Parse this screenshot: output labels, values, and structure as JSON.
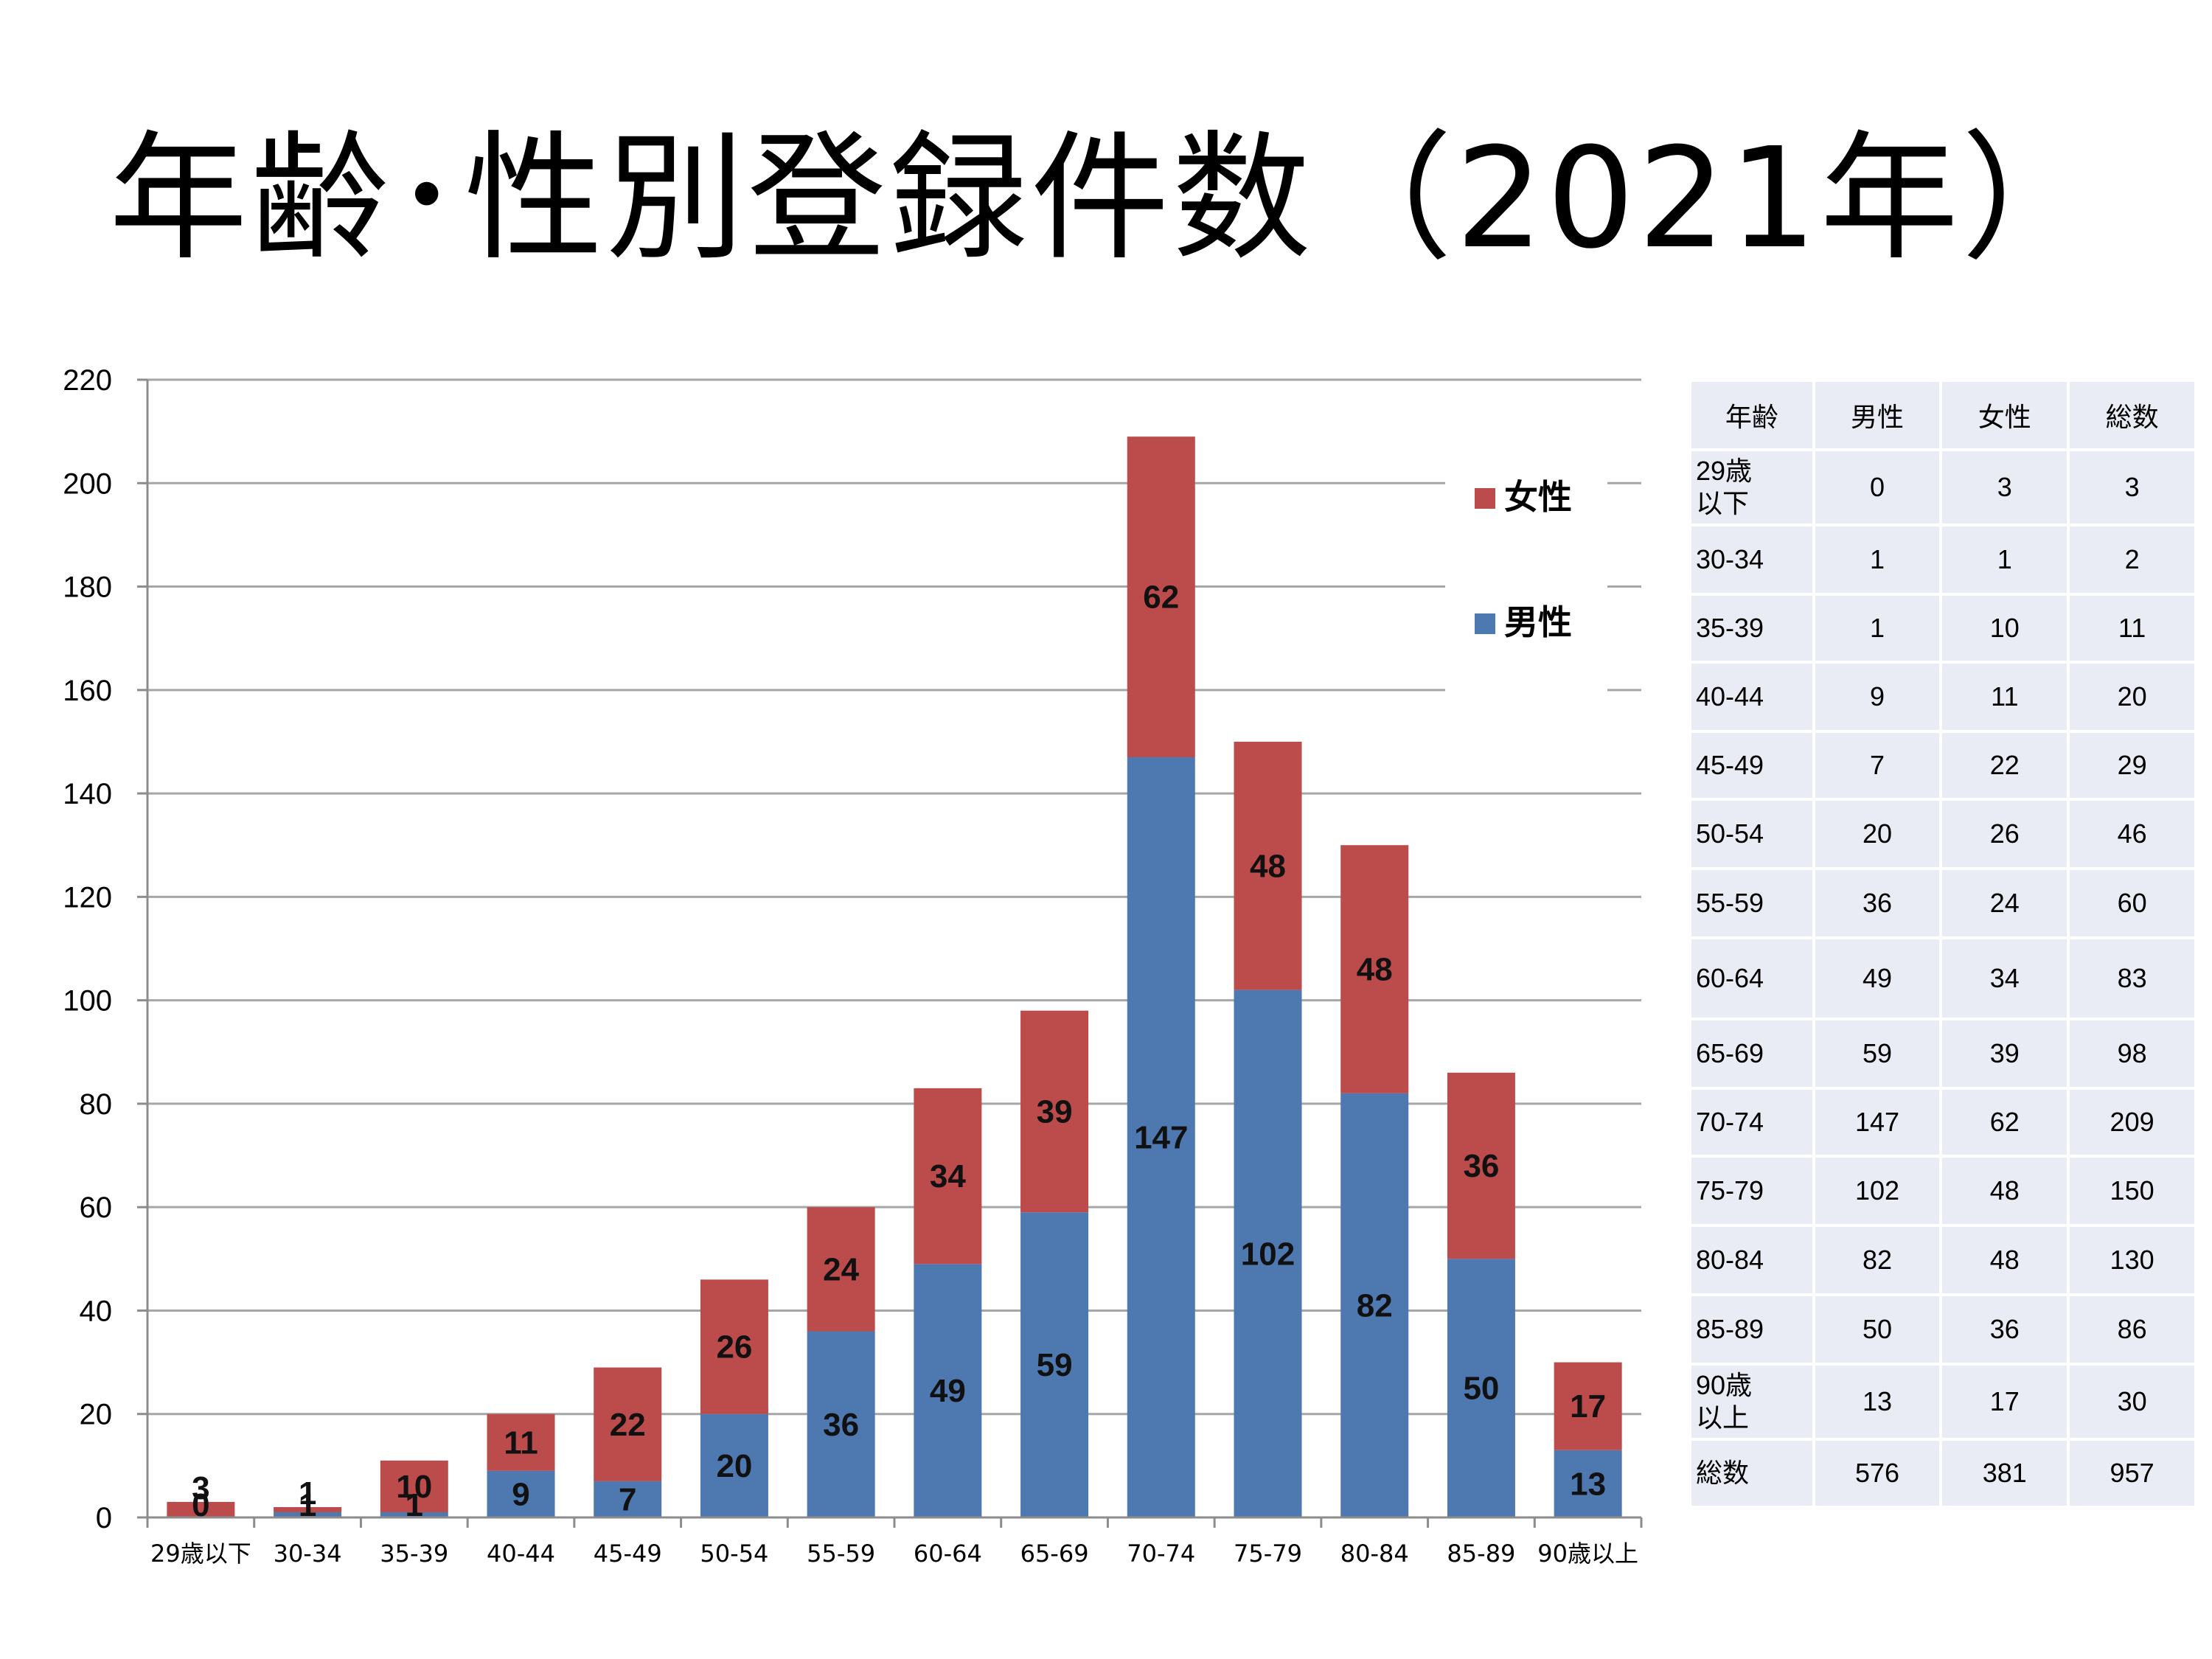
{
  "title": "年齢･性別登録件数（2021年）",
  "chart_data": {
    "type": "bar",
    "stacked": true,
    "categories": [
      "29歳以下",
      "30-34",
      "35-39",
      "40-44",
      "45-49",
      "50-54",
      "55-59",
      "60-64",
      "65-69",
      "70-74",
      "75-79",
      "80-84",
      "85-89",
      "90歳以上"
    ],
    "series": [
      {
        "name": "男性",
        "color": "#4e79b0",
        "values": [
          0,
          1,
          1,
          9,
          7,
          20,
          36,
          49,
          59,
          147,
          102,
          82,
          50,
          13
        ]
      },
      {
        "name": "女性",
        "color": "#bb4c4b",
        "values": [
          3,
          1,
          10,
          11,
          22,
          26,
          24,
          34,
          39,
          62,
          48,
          48,
          36,
          17
        ]
      }
    ],
    "ylim": [
      0,
      220
    ],
    "yticks": [
      0,
      20,
      40,
      60,
      80,
      100,
      120,
      140,
      160,
      180,
      200,
      220
    ],
    "grid": true,
    "legend": "top-right",
    "xlabel": "",
    "ylabel": ""
  },
  "table": {
    "headers": [
      "年齢",
      "男性",
      "女性",
      "総数"
    ],
    "rows": [
      [
        "29歳以下",
        "0",
        "3",
        "3"
      ],
      [
        "30-34",
        "1",
        "1",
        "2"
      ],
      [
        "35-39",
        "1",
        "10",
        "11"
      ],
      [
        "40-44",
        "9",
        "11",
        "20"
      ],
      [
        "45-49",
        "7",
        "22",
        "29"
      ],
      [
        "50-54",
        "20",
        "26",
        "46"
      ],
      [
        "55-59",
        "36",
        "24",
        "60"
      ],
      [
        "60-64",
        "49",
        "34",
        "83"
      ],
      [
        "65-69",
        "59",
        "39",
        "98"
      ],
      [
        "70-74",
        "147",
        "62",
        "209"
      ],
      [
        "75-79",
        "102",
        "48",
        "150"
      ],
      [
        "80-84",
        "82",
        "48",
        "130"
      ],
      [
        "85-89",
        "50",
        "36",
        "86"
      ],
      [
        "90歳以上",
        "13",
        "17",
        "30"
      ],
      [
        "総数",
        "576",
        "381",
        "957"
      ]
    ]
  }
}
